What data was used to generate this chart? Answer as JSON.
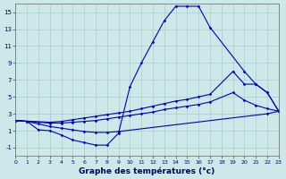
{
  "xlabel": "Graphe des températures (°c)",
  "bg_color": "#cce8e8",
  "line_color": "#0000bb",
  "grid_color": "#aacccc",
  "xlim": [
    0,
    23
  ],
  "ylim": [
    -2,
    16
  ],
  "yticks": [
    -1,
    1,
    3,
    5,
    7,
    9,
    11,
    13,
    15
  ],
  "xticks": [
    0,
    1,
    2,
    3,
    4,
    5,
    6,
    7,
    8,
    9,
    10,
    11,
    12,
    13,
    14,
    15,
    16,
    17,
    18,
    19,
    20,
    21,
    22,
    23
  ],
  "curve1_x": [
    0,
    1,
    2,
    3,
    4,
    5,
    6,
    7,
    8,
    9,
    10,
    11,
    12,
    13,
    14,
    15,
    16,
    17,
    20,
    21,
    22,
    23
  ],
  "curve1_y": [
    2.2,
    2.1,
    1.1,
    1.0,
    0.5,
    -0.1,
    -0.4,
    -0.7,
    -0.7,
    0.7,
    6.2,
    9.0,
    11.5,
    14.0,
    15.7,
    15.7,
    15.7,
    13.2,
    8.0,
    6.5,
    5.5,
    3.3
  ],
  "curve2_x": [
    0,
    3,
    4,
    5,
    6,
    7,
    8,
    9,
    10,
    11,
    12,
    13,
    14,
    15,
    16,
    17,
    19,
    20,
    21,
    22,
    23
  ],
  "curve2_y": [
    2.2,
    2.0,
    2.1,
    2.3,
    2.5,
    2.7,
    2.9,
    3.1,
    3.3,
    3.6,
    3.9,
    4.2,
    4.5,
    4.7,
    5.0,
    5.3,
    8.0,
    6.5,
    6.5,
    5.5,
    3.3
  ],
  "curve3_x": [
    0,
    3,
    4,
    5,
    6,
    7,
    8,
    9,
    10,
    11,
    12,
    13,
    14,
    15,
    16,
    17,
    19,
    20,
    21,
    22,
    23
  ],
  "curve3_y": [
    2.2,
    1.9,
    1.9,
    2.0,
    2.1,
    2.2,
    2.4,
    2.6,
    2.8,
    3.0,
    3.2,
    3.5,
    3.7,
    3.9,
    4.1,
    4.4,
    5.5,
    4.6,
    4.0,
    3.6,
    3.3
  ],
  "curve4_x": [
    0,
    1,
    2,
    3,
    4,
    5,
    6,
    7,
    8,
    9,
    22,
    23
  ],
  "curve4_y": [
    2.2,
    2.1,
    1.8,
    1.5,
    1.3,
    1.1,
    0.9,
    0.8,
    0.8,
    0.9,
    3.0,
    3.3
  ]
}
